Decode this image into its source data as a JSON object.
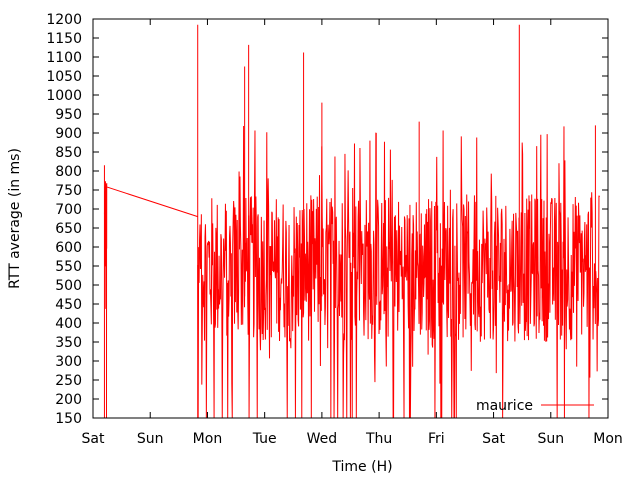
{
  "chart_data": {
    "type": "line",
    "xlabel": "Time (H)",
    "ylabel": "RTT average (in ms)",
    "ylim": [
      150,
      1200
    ],
    "yticks": [
      150,
      200,
      250,
      300,
      350,
      400,
      450,
      500,
      550,
      600,
      650,
      700,
      750,
      800,
      850,
      900,
      950,
      1000,
      1050,
      1100,
      1150,
      1200
    ],
    "xticks": [
      "Sat",
      "Sun",
      "Mon",
      "Tue",
      "Wed",
      "Thu",
      "Fri",
      "Sat",
      "Sun",
      "Mon"
    ],
    "xlim_days": [
      0,
      9
    ],
    "legend": {
      "position": "bottom-right"
    },
    "series": [
      {
        "name": "maurice",
        "color": "#ff0000",
        "segments": [
          {
            "x_range_days": [
              0.2,
              0.24
            ],
            "y_min": 150,
            "y_max": 815,
            "typical": [
              520,
              780
            ]
          },
          {
            "connector": true,
            "points": [
              [
                0.24,
                758
              ],
              [
                1.83,
                680
              ]
            ]
          },
          {
            "x_range_days": [
              1.83,
              8.85
            ],
            "y_min": 150,
            "y_max": 1185,
            "typical": [
              350,
              740
            ],
            "notable_peaks": [
              {
                "day": 2.65,
                "value": 1075
              },
              {
                "day": 2.72,
                "value": 1132
              },
              {
                "day": 3.68,
                "value": 1112
              },
              {
                "day": 4.0,
                "value": 980
              },
              {
                "day": 4.95,
                "value": 900
              },
              {
                "day": 5.7,
                "value": 930
              },
              {
                "day": 7.45,
                "value": 1185
              },
              {
                "day": 8.78,
                "value": 920
              }
            ]
          }
        ]
      }
    ]
  }
}
